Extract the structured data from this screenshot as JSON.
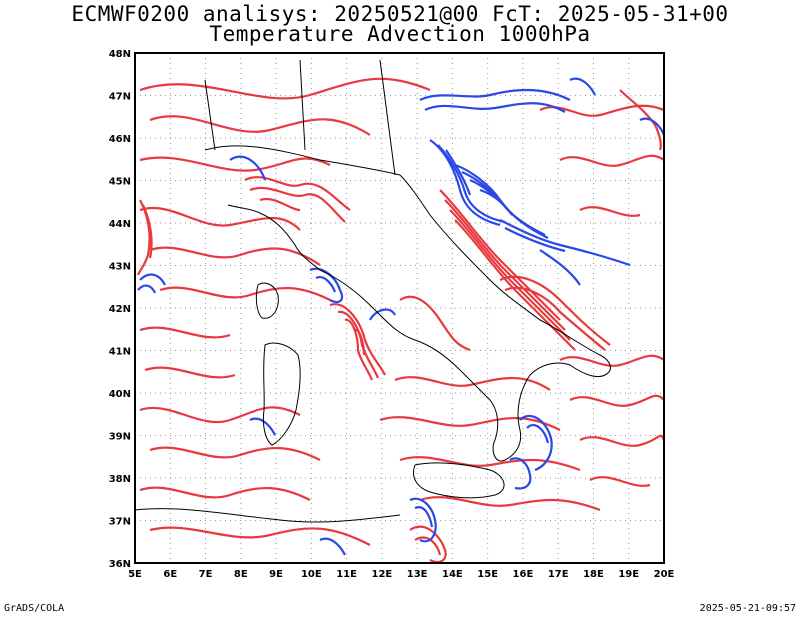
{
  "title_line1": "ECMWF0200 analisys: 20250521@00 FcT: 2025-05-31+00",
  "title_line2": "Temperature Advection 1000hPa",
  "footer_left": "GrADS/COLA",
  "footer_right": "2025-05-21-09:57",
  "x_ticks": [
    "5E",
    "6E",
    "7E",
    "8E",
    "9E",
    "10E",
    "11E",
    "12E",
    "13E",
    "14E",
    "15E",
    "16E",
    "17E",
    "18E",
    "19E",
    "20E"
  ],
  "y_ticks": [
    "48N",
    "47N",
    "46N",
    "45N",
    "44N",
    "43N",
    "42N",
    "41N",
    "40N",
    "39N",
    "38N",
    "37N",
    "36N"
  ],
  "colors": {
    "positive": "#e8393f",
    "negative": "#2a47e8",
    "coast": "#000000",
    "grid": "#999999"
  }
}
